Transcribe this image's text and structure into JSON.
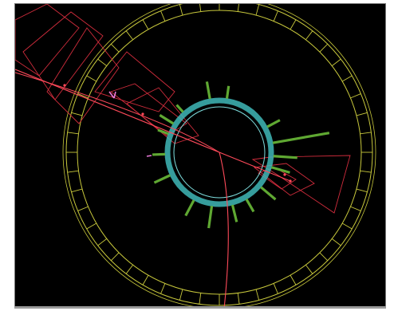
{
  "display": {
    "background": "#000000",
    "frame_color": "#ffffff",
    "border_color": "#777777"
  },
  "colors": {
    "calorimeter": "#c8c83c",
    "tracker_ring": "#3fb8b8",
    "tracker_inner": "#7fe0e0",
    "track": "#ff4a5a",
    "cluster": "#d02c3c",
    "hit": "#5fa832",
    "marker": "#e87ad8"
  },
  "layers": {
    "calorimeter_segments": 48,
    "hit_bars": [
      {
        "angle": -100,
        "length": 22
      },
      {
        "angle": -82,
        "length": 16
      },
      {
        "angle": -148,
        "length": 20
      },
      {
        "angle": -160,
        "length": 14
      },
      {
        "angle": -28,
        "length": 18
      },
      {
        "angle": -10,
        "length": 72
      },
      {
        "angle": 4,
        "length": 30
      },
      {
        "angle": 16,
        "length": 24
      },
      {
        "angle": 40,
        "length": 24
      },
      {
        "angle": 60,
        "length": 18
      },
      {
        "angle": 76,
        "length": 22
      },
      {
        "angle": 98,
        "length": 28
      },
      {
        "angle": 118,
        "length": 22
      },
      {
        "angle": 155,
        "length": 22
      },
      {
        "angle": 178,
        "length": 16
      },
      {
        "angle": -132,
        "length": 12
      }
    ]
  }
}
